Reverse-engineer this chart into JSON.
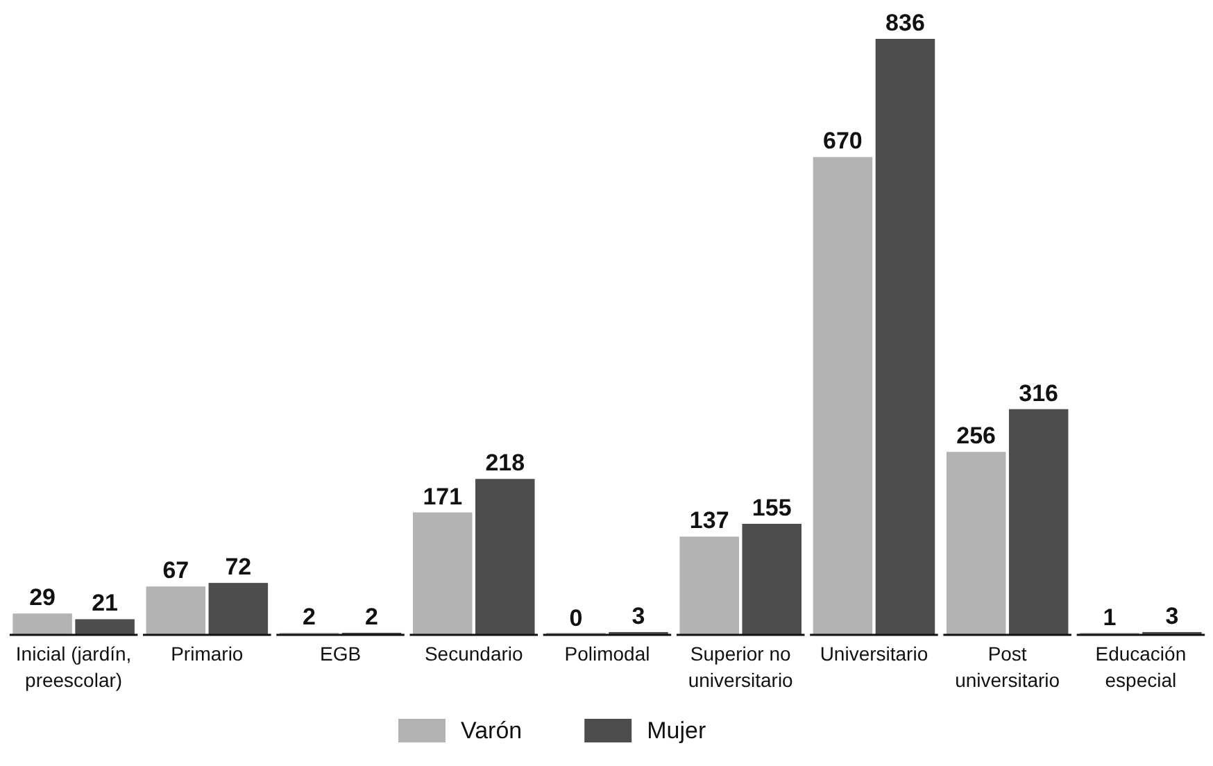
{
  "chart_data": {
    "type": "bar",
    "categories": [
      "Inicial (jardín, preescolar)",
      "Primario",
      "EGB",
      "Secundario",
      "Polimodal",
      "Superior no universitario",
      "Universitario",
      "Post universitario",
      "Educación especial"
    ],
    "series": [
      {
        "name": "Varón",
        "color": "#b3b3b3",
        "values": [
          29,
          67,
          2,
          171,
          0,
          137,
          670,
          256,
          1
        ]
      },
      {
        "name": "Mujer",
        "color": "#4d4d4d",
        "values": [
          21,
          72,
          2,
          218,
          3,
          155,
          836,
          316,
          3
        ]
      }
    ],
    "data_labels": true,
    "legend": "bottom"
  }
}
